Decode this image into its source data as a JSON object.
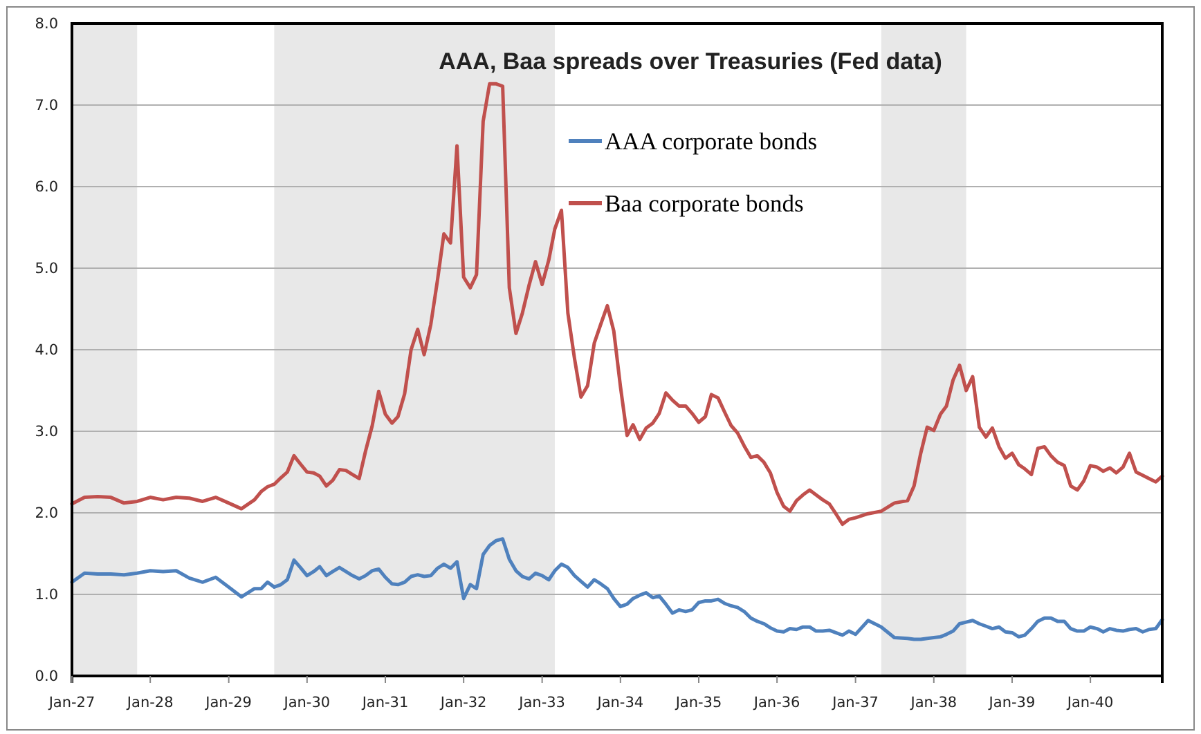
{
  "chart_data": {
    "type": "line",
    "title": "AAA, Baa spreads over Treasuries (Fed data)",
    "xlim": [
      "1927-01",
      "1940-12"
    ],
    "xticks": [
      {
        "value": "1927-01",
        "label": "Jan-27"
      },
      {
        "value": "1928-01",
        "label": "Jan-28"
      },
      {
        "value": "1929-01",
        "label": "Jan-29"
      },
      {
        "value": "1930-01",
        "label": "Jan-30"
      },
      {
        "value": "1931-01",
        "label": "Jan-31"
      },
      {
        "value": "1932-01",
        "label": "Jan-32"
      },
      {
        "value": "1933-01",
        "label": "Jan-33"
      },
      {
        "value": "1934-01",
        "label": "Jan-34"
      },
      {
        "value": "1935-01",
        "label": "Jan-35"
      },
      {
        "value": "1936-01",
        "label": "Jan-36"
      },
      {
        "value": "1937-01",
        "label": "Jan-37"
      },
      {
        "value": "1938-01",
        "label": "Jan-38"
      },
      {
        "value": "1939-01",
        "label": "Jan-39"
      },
      {
        "value": "1940-01",
        "label": "Jan-40"
      }
    ],
    "ylim": [
      0,
      8
    ],
    "yticks": [
      {
        "value": 0,
        "label": "0.0"
      },
      {
        "value": 1,
        "label": "1.0"
      },
      {
        "value": 2,
        "label": "2.0"
      },
      {
        "value": 3,
        "label": "3.0"
      },
      {
        "value": 4,
        "label": "4.0"
      },
      {
        "value": 5,
        "label": "5.0"
      },
      {
        "value": 6,
        "label": "6.0"
      },
      {
        "value": 7,
        "label": "7.0"
      },
      {
        "value": 8,
        "label": "8.0"
      }
    ],
    "grid": "y",
    "legend": "top right",
    "marker": "none",
    "line_style": "solid",
    "bands": [
      {
        "axis": "x",
        "from": "1927-01",
        "to": "1927-11",
        "color": "#e8e8e8"
      },
      {
        "axis": "x",
        "from": "1929-08",
        "to": "1933-03",
        "color": "#e8e8e8"
      },
      {
        "axis": "x",
        "from": "1937-05",
        "to": "1938-06",
        "color": "#e8e8e8"
      }
    ],
    "x": [
      "1927-01",
      "1927-03",
      "1927-05",
      "1927-07",
      "1927-09",
      "1927-11",
      "1928-01",
      "1928-03",
      "1928-05",
      "1928-07",
      "1928-09",
      "1928-11",
      "1929-01",
      "1929-03",
      "1929-05",
      "1929-06",
      "1929-07",
      "1929-08",
      "1929-09",
      "1929-10",
      "1929-11",
      "1929-12",
      "1930-01",
      "1930-02",
      "1930-03",
      "1930-04",
      "1930-05",
      "1930-06",
      "1930-07",
      "1930-08",
      "1930-09",
      "1930-10",
      "1930-11",
      "1930-12",
      "1931-01",
      "1931-02",
      "1931-03",
      "1931-04",
      "1931-05",
      "1931-06",
      "1931-07",
      "1931-08",
      "1931-09",
      "1931-10",
      "1931-11",
      "1931-12",
      "1932-01",
      "1932-02",
      "1932-03",
      "1932-04",
      "1932-05",
      "1932-06",
      "1932-07",
      "1932-08",
      "1932-09",
      "1932-10",
      "1932-11",
      "1932-12",
      "1933-01",
      "1933-02",
      "1933-03",
      "1933-04",
      "1933-05",
      "1933-06",
      "1933-07",
      "1933-08",
      "1933-09",
      "1933-10",
      "1933-11",
      "1933-12",
      "1934-01",
      "1934-02",
      "1934-03",
      "1934-04",
      "1934-05",
      "1934-06",
      "1934-07",
      "1934-08",
      "1934-09",
      "1934-10",
      "1934-11",
      "1934-12",
      "1935-01",
      "1935-02",
      "1935-03",
      "1935-04",
      "1935-05",
      "1935-06",
      "1935-07",
      "1935-08",
      "1935-09",
      "1935-10",
      "1935-11",
      "1935-12",
      "1936-01",
      "1936-02",
      "1936-03",
      "1936-04",
      "1936-05",
      "1936-06",
      "1936-07",
      "1936-08",
      "1936-09",
      "1936-10",
      "1936-11",
      "1936-12",
      "1937-01",
      "1937-03",
      "1937-05",
      "1937-07",
      "1937-09",
      "1937-10",
      "1937-11",
      "1937-12",
      "1938-01",
      "1938-02",
      "1938-03",
      "1938-04",
      "1938-05",
      "1938-06",
      "1938-07",
      "1938-08",
      "1938-09",
      "1938-10",
      "1938-11",
      "1938-12",
      "1939-01",
      "1939-02",
      "1939-03",
      "1939-04",
      "1939-05",
      "1939-06",
      "1939-07",
      "1939-08",
      "1939-09",
      "1939-10",
      "1939-11",
      "1939-12",
      "1940-01",
      "1940-02",
      "1940-03",
      "1940-04",
      "1940-05",
      "1940-06",
      "1940-07",
      "1940-08",
      "1940-09",
      "1940-10",
      "1940-11",
      "1940-12"
    ],
    "series": [
      {
        "name": "AAA corporate bonds",
        "color": "#4f81bd",
        "values": [
          1.15,
          1.26,
          1.25,
          1.25,
          1.24,
          1.26,
          1.29,
          1.28,
          1.29,
          1.2,
          1.15,
          1.21,
          1.09,
          0.97,
          1.07,
          1.07,
          1.15,
          1.09,
          1.12,
          1.18,
          1.42,
          1.33,
          1.23,
          1.28,
          1.34,
          1.23,
          1.28,
          1.33,
          1.28,
          1.23,
          1.19,
          1.23,
          1.29,
          1.31,
          1.21,
          1.13,
          1.12,
          1.15,
          1.22,
          1.24,
          1.22,
          1.23,
          1.32,
          1.37,
          1.32,
          1.4,
          0.95,
          1.12,
          1.07,
          1.49,
          1.6,
          1.66,
          1.68,
          1.43,
          1.29,
          1.22,
          1.19,
          1.26,
          1.23,
          1.18,
          1.29,
          1.37,
          1.33,
          1.23,
          1.16,
          1.09,
          1.18,
          1.13,
          1.07,
          0.95,
          0.85,
          0.88,
          0.95,
          0.99,
          1.02,
          0.96,
          0.98,
          0.88,
          0.77,
          0.81,
          0.79,
          0.81,
          0.9,
          0.92,
          0.92,
          0.94,
          0.89,
          0.86,
          0.84,
          0.79,
          0.71,
          0.67,
          0.64,
          0.59,
          0.55,
          0.54,
          0.58,
          0.57,
          0.6,
          0.6,
          0.55,
          0.55,
          0.56,
          0.53,
          0.5,
          0.55,
          0.51,
          0.68,
          0.6,
          0.47,
          0.46,
          0.45,
          0.45,
          0.46,
          0.47,
          0.48,
          0.51,
          0.55,
          0.64,
          0.66,
          0.68,
          0.64,
          0.61,
          0.58,
          0.6,
          0.54,
          0.53,
          0.48,
          0.5,
          0.58,
          0.67,
          0.71,
          0.71,
          0.67,
          0.67,
          0.58,
          0.55,
          0.55,
          0.6,
          0.58,
          0.54,
          0.58,
          0.56,
          0.55,
          0.57,
          0.58,
          0.54,
          0.57,
          0.58,
          0.69
        ]
      },
      {
        "name": "Baa corporate bonds",
        "color": "#c0504d",
        "values": [
          2.11,
          2.19,
          2.2,
          2.19,
          2.12,
          2.14,
          2.19,
          2.16,
          2.19,
          2.18,
          2.14,
          2.19,
          2.12,
          2.05,
          2.16,
          2.26,
          2.32,
          2.35,
          2.43,
          2.5,
          2.7,
          2.6,
          2.5,
          2.49,
          2.45,
          2.33,
          2.4,
          2.53,
          2.52,
          2.47,
          2.42,
          2.76,
          3.07,
          3.49,
          3.21,
          3.1,
          3.18,
          3.46,
          4.0,
          4.25,
          3.94,
          4.31,
          4.85,
          5.42,
          5.31,
          6.5,
          4.89,
          4.76,
          4.92,
          6.8,
          7.26,
          7.26,
          7.23,
          4.76,
          4.2,
          4.45,
          4.79,
          5.08,
          4.8,
          5.1,
          5.48,
          5.71,
          4.45,
          3.89,
          3.42,
          3.56,
          4.08,
          4.31,
          4.54,
          4.23,
          3.55,
          2.95,
          3.08,
          2.9,
          3.04,
          3.1,
          3.22,
          3.47,
          3.38,
          3.31,
          3.31,
          3.22,
          3.11,
          3.18,
          3.45,
          3.41,
          3.24,
          3.07,
          2.98,
          2.82,
          2.68,
          2.7,
          2.62,
          2.49,
          2.25,
          2.08,
          2.02,
          2.15,
          2.22,
          2.28,
          2.22,
          2.16,
          2.11,
          1.99,
          1.86,
          1.92,
          1.94,
          1.99,
          2.02,
          2.12,
          2.15,
          2.33,
          2.73,
          3.05,
          3.01,
          3.21,
          3.31,
          3.63,
          3.81,
          3.5,
          3.67,
          3.05,
          2.93,
          3.04,
          2.81,
          2.67,
          2.73,
          2.59,
          2.54,
          2.47,
          2.79,
          2.81,
          2.7,
          2.62,
          2.58,
          2.33,
          2.28,
          2.39,
          2.58,
          2.56,
          2.51,
          2.55,
          2.49,
          2.56,
          2.73,
          2.5,
          2.46,
          2.42,
          2.38,
          2.45
        ]
      }
    ]
  }
}
